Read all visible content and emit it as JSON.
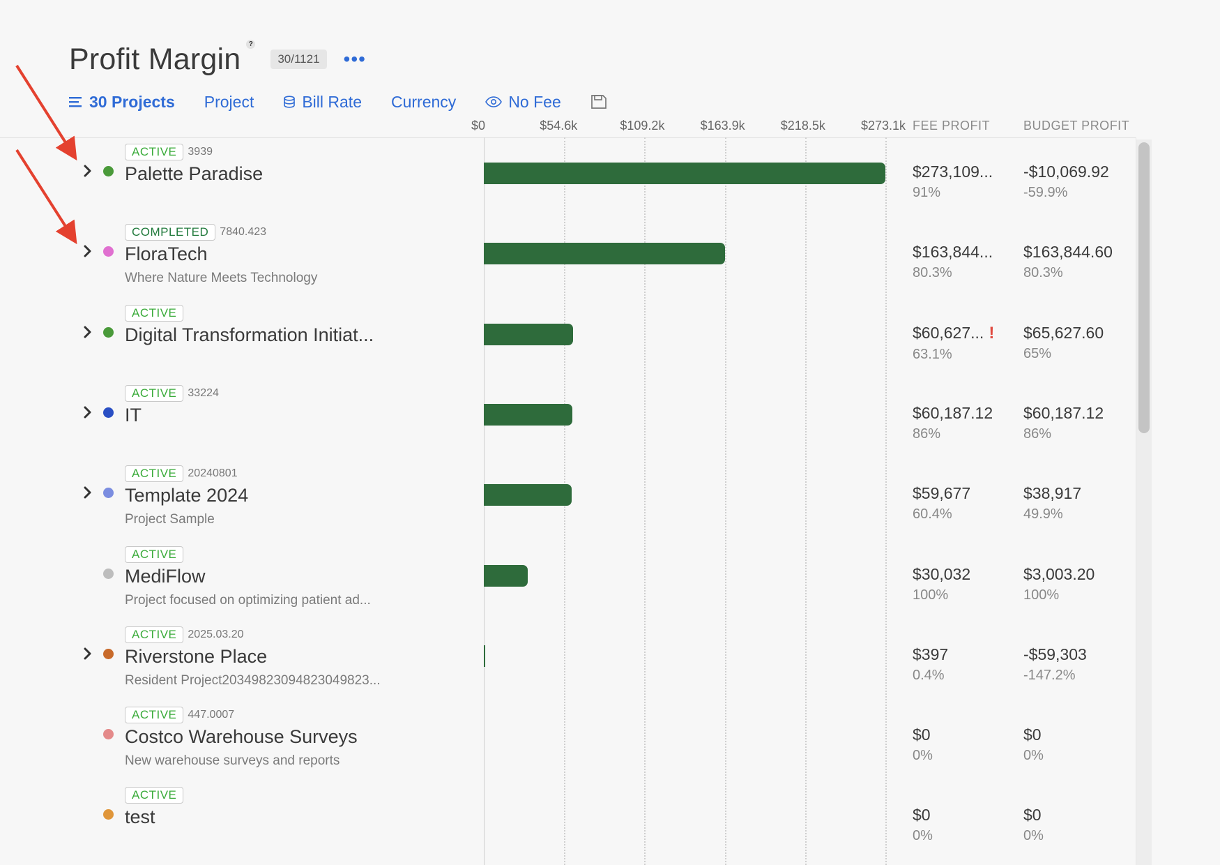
{
  "header": {
    "title": "Profit Margin",
    "help": "?",
    "count": "30/1121",
    "more": "•••"
  },
  "toolbar": {
    "projects_label": "30 Projects",
    "project_label": "Project",
    "bill_rate_label": "Bill Rate",
    "currency_label": "Currency",
    "no_fee_label": "No Fee"
  },
  "columns": {
    "fee_profit": "FEE PROFIT",
    "budget_profit": "BUDGET PROFIT"
  },
  "chart_data": {
    "type": "bar",
    "orientation": "horizontal",
    "tick_labels": [
      "$0",
      "$54.6k",
      "$109.2k",
      "$163.9k",
      "$218.5k",
      "$273.1k"
    ],
    "xlim": [
      0,
      273109
    ],
    "categories": [
      "Palette Paradise",
      "FloraTech",
      "Digital Transformation Initiat...",
      "IT",
      "Template 2024",
      "MediFlow",
      "Riverstone Place",
      "Costco Warehouse Surveys",
      "test"
    ],
    "values": [
      273109,
      163844.6,
      60627,
      60187.12,
      59677,
      30032,
      397,
      0,
      0
    ]
  },
  "projects": [
    {
      "status": "ACTIVE",
      "status_type": "active",
      "code": "3939",
      "name": "Palette Paradise",
      "desc": "",
      "dot": "#4a9a3a",
      "chevron": true,
      "fee": "$273,109...",
      "fee_pct": "91%",
      "warn": "",
      "budget": "-$10,069.92",
      "budget_pct": "-59.9%"
    },
    {
      "status": "COMPLETED",
      "status_type": "completed",
      "code": "7840.423",
      "name": "FloraTech",
      "desc": "Where Nature Meets Technology",
      "dot": "#e070d0",
      "chevron": true,
      "fee": "$163,844...",
      "fee_pct": "80.3%",
      "warn": "",
      "budget": "$163,844.60",
      "budget_pct": "80.3%"
    },
    {
      "status": "ACTIVE",
      "status_type": "active",
      "code": "",
      "name": "Digital Transformation Initiat...",
      "desc": "",
      "dot": "#4a9a3a",
      "chevron": true,
      "fee": "$60,627...",
      "fee_pct": "63.1%",
      "warn": "!",
      "budget": "$65,627.60",
      "budget_pct": "65%"
    },
    {
      "status": "ACTIVE",
      "status_type": "active",
      "code": "33224",
      "name": "IT",
      "desc": "",
      "dot": "#2a4fc4",
      "chevron": true,
      "fee": "$60,187.12",
      "fee_pct": "86%",
      "warn": "",
      "budget": "$60,187.12",
      "budget_pct": "86%"
    },
    {
      "status": "ACTIVE",
      "status_type": "active",
      "code": "20240801",
      "name": "Template 2024",
      "desc": "Project Sample",
      "dot": "#7b8de0",
      "chevron": true,
      "fee": "$59,677",
      "fee_pct": "60.4%",
      "warn": "",
      "budget": "$38,917",
      "budget_pct": "49.9%"
    },
    {
      "status": "ACTIVE",
      "status_type": "active",
      "code": "",
      "name": "MediFlow",
      "desc": "Project focused on optimizing patient ad...",
      "dot": "#bdbdbd",
      "chevron": false,
      "fee": "$30,032",
      "fee_pct": "100%",
      "warn": "",
      "budget": "$3,003.20",
      "budget_pct": "100%"
    },
    {
      "status": "ACTIVE",
      "status_type": "active",
      "code": "2025.03.20",
      "name": "Riverstone Place",
      "desc": "Resident Project20349823094823049823...",
      "dot": "#c86a2a",
      "chevron": true,
      "fee": "$397",
      "fee_pct": "0.4%",
      "warn": "",
      "budget": "-$59,303",
      "budget_pct": "-147.2%"
    },
    {
      "status": "ACTIVE",
      "status_type": "active",
      "code": "447.0007",
      "name": "Costco Warehouse Surveys",
      "desc": "New warehouse surveys and reports",
      "dot": "#e48a8a",
      "chevron": false,
      "fee": "$0",
      "fee_pct": "0%",
      "warn": "",
      "budget": "$0",
      "budget_pct": "0%"
    },
    {
      "status": "ACTIVE",
      "status_type": "active",
      "code": "",
      "name": "test",
      "desc": "",
      "dot": "#e0963a",
      "chevron": false,
      "fee": "$0",
      "fee_pct": "0%",
      "warn": "",
      "budget": "$0",
      "budget_pct": "0%"
    }
  ],
  "colors": {
    "accent": "#2f6bd6",
    "bar": "#2e6b3b",
    "annotation_arrow": "#e4412f"
  }
}
